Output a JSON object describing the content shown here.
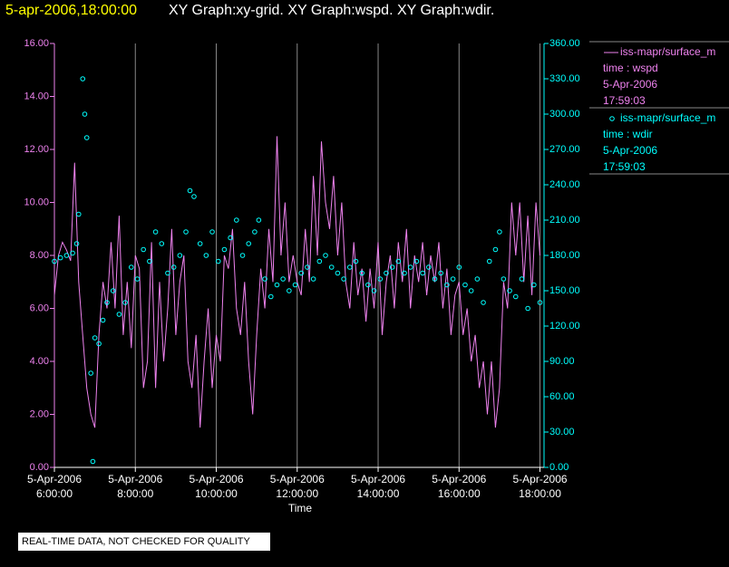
{
  "chart_data": {
    "type": "xy",
    "timestamp": "5-apr-2006,18:00:00",
    "title": "XY Graph:xy-grid.  XY Graph:wspd.  XY Graph:wdir.",
    "x_label": "Time",
    "footer": "REAL-TIME DATA, NOT CHECKED FOR QUALITY",
    "xlim": [
      6,
      18.1
    ],
    "xticks": [
      {
        "value": 6,
        "label": [
          "5-Apr-2006",
          "6:00:00"
        ]
      },
      {
        "value": 8,
        "label": [
          "5-Apr-2006",
          "8:00:00"
        ]
      },
      {
        "value": 10,
        "label": [
          "5-Apr-2006",
          "10:00:00"
        ]
      },
      {
        "value": 12,
        "label": [
          "5-Apr-2006",
          "12:00:00"
        ]
      },
      {
        "value": 14,
        "label": [
          "5-Apr-2006",
          "14:00:00"
        ]
      },
      {
        "value": 16,
        "label": [
          "5-Apr-2006",
          "16:00:00"
        ]
      },
      {
        "value": 18,
        "label": [
          "5-Apr-2006",
          "18:00:00"
        ]
      }
    ],
    "ylim": [
      0,
      16
    ],
    "yticks": [
      {
        "value": 0,
        "label": "0.00"
      },
      {
        "value": 2,
        "label": "2.00"
      },
      {
        "value": 4,
        "label": "4.00"
      },
      {
        "value": 6,
        "label": "6.00"
      },
      {
        "value": 8,
        "label": "8.00"
      },
      {
        "value": 10,
        "label": "10.00"
      },
      {
        "value": 12,
        "label": "12.00"
      },
      {
        "value": 14,
        "label": "14.00"
      },
      {
        "value": 16,
        "label": "16.00"
      }
    ],
    "y2lim": [
      0,
      360
    ],
    "y2ticks": [
      {
        "value": 0,
        "label": "0.00"
      },
      {
        "value": 30,
        "label": "30.00"
      },
      {
        "value": 60,
        "label": "60.00"
      },
      {
        "value": 90,
        "label": "90.00"
      },
      {
        "value": 120,
        "label": "120.00"
      },
      {
        "value": 150,
        "label": "150.00"
      },
      {
        "value": 180,
        "label": "180.00"
      },
      {
        "value": 210,
        "label": "210.00"
      },
      {
        "value": 240,
        "label": "240.00"
      },
      {
        "value": 270,
        "label": "270.00"
      },
      {
        "value": 300,
        "label": "300.00"
      },
      {
        "value": 330,
        "label": "330.00"
      },
      {
        "value": 360,
        "label": "360.00"
      }
    ],
    "grid": true,
    "series": [
      {
        "name": "iss-mapr/surface_m",
        "kind": "line",
        "color": "#ee82ee",
        "legend_lines": [
          "time : wspd",
          "5-Apr-2006",
          "17:59:03"
        ],
        "x": [
          6,
          6.1,
          6.2,
          6.3,
          6.4,
          6.5,
          6.6,
          6.7,
          6.8,
          6.9,
          7,
          7.1,
          7.2,
          7.3,
          7.4,
          7.5,
          7.6,
          7.7,
          7.8,
          7.9,
          8,
          8.1,
          8.2,
          8.3,
          8.4,
          8.5,
          8.6,
          8.7,
          8.8,
          8.9,
          9,
          9.1,
          9.2,
          9.3,
          9.4,
          9.5,
          9.6,
          9.7,
          9.8,
          9.9,
          10,
          10.1,
          10.2,
          10.3,
          10.4,
          10.5,
          10.6,
          10.7,
          10.8,
          10.9,
          11,
          11.1,
          11.2,
          11.3,
          11.4,
          11.5,
          11.6,
          11.7,
          11.8,
          11.9,
          12,
          12.1,
          12.2,
          12.3,
          12.4,
          12.5,
          12.6,
          12.7,
          12.8,
          12.9,
          13,
          13.1,
          13.2,
          13.3,
          13.4,
          13.5,
          13.6,
          13.7,
          13.8,
          13.9,
          14,
          14.1,
          14.2,
          14.3,
          14.4,
          14.5,
          14.6,
          14.7,
          14.8,
          14.9,
          15,
          15.1,
          15.2,
          15.3,
          15.4,
          15.5,
          15.6,
          15.7,
          15.8,
          15.9,
          16,
          16.1,
          16.2,
          16.3,
          16.4,
          16.5,
          16.6,
          16.7,
          16.8,
          16.9,
          17,
          17.1,
          17.2,
          17.3,
          17.4,
          17.5,
          17.6,
          17.7,
          17.8,
          17.9,
          18
        ],
        "values": [
          6.5,
          8,
          8.5,
          8.2,
          7.8,
          11.5,
          7,
          5,
          3,
          2,
          1.5,
          5,
          7,
          6,
          8.5,
          6,
          9.5,
          5,
          7,
          4.5,
          8,
          7.5,
          3,
          4,
          8.5,
          3,
          7,
          4,
          6,
          9,
          5,
          7,
          8,
          4,
          3,
          5,
          1.5,
          4,
          6,
          3,
          5,
          4,
          8,
          7.5,
          9,
          6,
          5,
          7,
          4,
          2,
          5,
          7.5,
          6,
          9,
          7,
          12.5,
          8,
          10,
          7,
          8,
          7,
          6.5,
          9,
          7,
          11,
          8,
          12.3,
          10,
          9,
          11,
          8,
          10,
          7,
          6,
          8.5,
          6.5,
          7.5,
          5.5,
          7.5,
          6,
          8.5,
          5,
          7,
          8,
          6,
          8.5,
          7,
          9,
          6,
          8,
          7,
          8.5,
          6.5,
          8,
          7,
          8.5,
          6,
          7.5,
          5,
          6.5,
          7,
          5,
          6,
          4,
          5,
          3,
          4,
          2,
          4,
          1.5,
          3,
          7,
          6,
          10,
          8,
          10,
          7,
          9.5,
          6.5,
          10,
          8
        ]
      },
      {
        "name": "iss-mapr/surface_m",
        "kind": "scatter",
        "color": "#00ffff",
        "axis": "y2",
        "legend_lines": [
          "time : wdir",
          "5-Apr-2006",
          "17:59:03"
        ],
        "x": [
          6,
          6.15,
          6.3,
          6.45,
          6.55,
          6.6,
          6.7,
          6.75,
          6.8,
          6.9,
          6.95,
          7,
          7.1,
          7.2,
          7.3,
          7.45,
          7.6,
          7.75,
          7.9,
          8.05,
          8.2,
          8.35,
          8.5,
          8.65,
          8.8,
          8.95,
          9.1,
          9.25,
          9.35,
          9.45,
          9.6,
          9.75,
          9.9,
          10.05,
          10.2,
          10.35,
          10.5,
          10.65,
          10.8,
          10.95,
          11.05,
          11.2,
          11.35,
          11.5,
          11.65,
          11.8,
          11.95,
          12.1,
          12.25,
          12.4,
          12.55,
          12.7,
          12.85,
          13,
          13.15,
          13.3,
          13.45,
          13.6,
          13.75,
          13.9,
          14.05,
          14.2,
          14.35,
          14.5,
          14.65,
          14.8,
          14.95,
          15.1,
          15.25,
          15.4,
          15.55,
          15.7,
          15.85,
          16,
          16.15,
          16.3,
          16.45,
          16.6,
          16.75,
          16.9,
          17,
          17.1,
          17.25,
          17.4,
          17.55,
          17.7,
          17.85,
          18
        ],
        "values": [
          175,
          178,
          180,
          182,
          190,
          215,
          330,
          300,
          280,
          80,
          5,
          110,
          105,
          125,
          140,
          150,
          130,
          140,
          170,
          160,
          185,
          175,
          200,
          190,
          165,
          170,
          180,
          200,
          235,
          230,
          190,
          180,
          200,
          175,
          185,
          195,
          210,
          180,
          190,
          200,
          210,
          160,
          145,
          155,
          160,
          150,
          155,
          165,
          170,
          160,
          175,
          180,
          170,
          165,
          160,
          170,
          175,
          165,
          155,
          150,
          160,
          165,
          170,
          175,
          165,
          170,
          175,
          165,
          170,
          160,
          165,
          155,
          160,
          170,
          155,
          150,
          160,
          140,
          175,
          185,
          200,
          160,
          150,
          145,
          160,
          135,
          155,
          140
        ]
      }
    ]
  }
}
